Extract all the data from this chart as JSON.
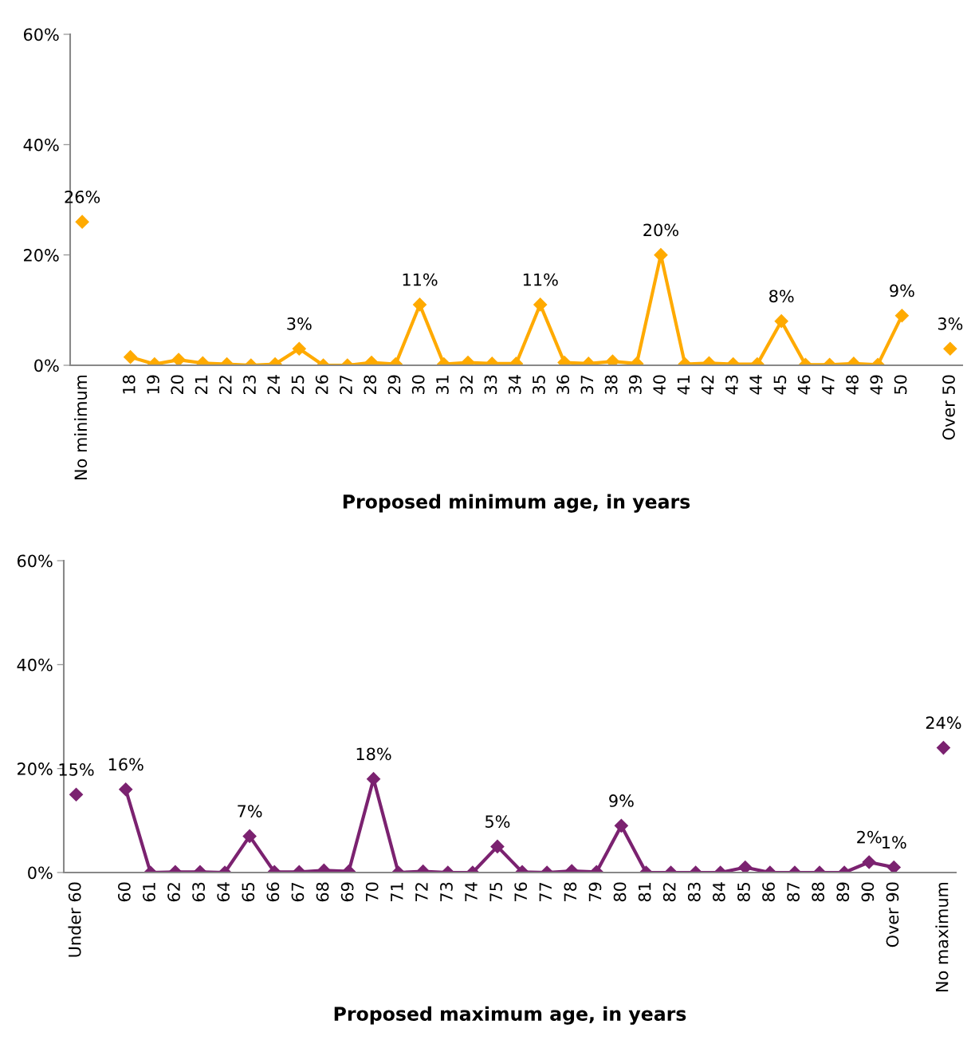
{
  "chart_data": [
    {
      "type": "line",
      "xlabel": "Proposed minimum age, in years",
      "categories": [
        "No minimum",
        null,
        "18",
        "19",
        "20",
        "21",
        "22",
        "23",
        "24",
        "25",
        "26",
        "27",
        "28",
        "29",
        "30",
        "31",
        "32",
        "33",
        "34",
        "35",
        "36",
        "37",
        "38",
        "39",
        "40",
        "41",
        "42",
        "43",
        "44",
        "45",
        "46",
        "47",
        "48",
        "49",
        "50",
        null,
        "Over 50"
      ],
      "series": [
        {
          "color": "#ffaa00",
          "values": [
            26,
            null,
            1.5,
            0.2,
            1,
            0.4,
            0.2,
            0,
            0.2,
            3,
            0,
            0,
            0.5,
            0.2,
            11,
            0.2,
            0.5,
            0.3,
            0.3,
            11,
            0.5,
            0.3,
            0.7,
            0.3,
            20,
            0.2,
            0.4,
            0.2,
            0.2,
            8,
            0.1,
            0.1,
            0.3,
            0.1,
            9,
            null,
            3
          ],
          "value_labels": [
            "26%",
            null,
            null,
            null,
            null,
            null,
            null,
            null,
            null,
            "3%",
            null,
            null,
            null,
            null,
            "11%",
            null,
            null,
            null,
            null,
            "11%",
            null,
            null,
            null,
            null,
            "20%",
            null,
            null,
            null,
            null,
            "8%",
            null,
            null,
            null,
            null,
            "9%",
            null,
            "3%"
          ]
        }
      ],
      "ylim": [
        0,
        60
      ],
      "yticks": [
        {
          "value": 0,
          "label": "0%"
        },
        {
          "value": 20,
          "label": "20%"
        },
        {
          "value": 40,
          "label": "40%"
        },
        {
          "value": 60,
          "label": "60%"
        }
      ],
      "marker": "diamond",
      "line_style": "solid",
      "grid": false,
      "legend": false
    },
    {
      "type": "line",
      "xlabel": "Proposed maximum age, in years",
      "categories": [
        "Under 60",
        null,
        "60",
        "61",
        "62",
        "63",
        "64",
        "65",
        "66",
        "67",
        "68",
        "69",
        "70",
        "71",
        "72",
        "73",
        "74",
        "75",
        "76",
        "77",
        "78",
        "79",
        "80",
        "81",
        "82",
        "83",
        "84",
        "85",
        "86",
        "87",
        "88",
        "89",
        "90",
        "Over 90",
        null,
        "No maximum"
      ],
      "series": [
        {
          "color": "#7b2270",
          "values": [
            15,
            null,
            16,
            0,
            0.1,
            0.1,
            0,
            7,
            0.1,
            0.1,
            0.4,
            0.2,
            18,
            0,
            0.2,
            0,
            0,
            5,
            0.1,
            0,
            0.3,
            0.1,
            9,
            0,
            0,
            0,
            0,
            1,
            0,
            0,
            0,
            0,
            2,
            1,
            null,
            24
          ],
          "value_labels": [
            "15%",
            null,
            "16%",
            null,
            null,
            null,
            null,
            "7%",
            null,
            null,
            null,
            null,
            "18%",
            null,
            null,
            null,
            null,
            "5%",
            null,
            null,
            null,
            null,
            "9%",
            null,
            null,
            null,
            null,
            null,
            null,
            null,
            null,
            null,
            "2%",
            "1%",
            null,
            "24%"
          ]
        }
      ],
      "ylim": [
        0,
        60
      ],
      "yticks": [
        {
          "value": 0,
          "label": "0%"
        },
        {
          "value": 20,
          "label": "20%"
        },
        {
          "value": 40,
          "label": "40%"
        },
        {
          "value": 60,
          "label": "60%"
        }
      ],
      "marker": "diamond",
      "line_style": "solid",
      "grid": false,
      "legend": false
    }
  ]
}
